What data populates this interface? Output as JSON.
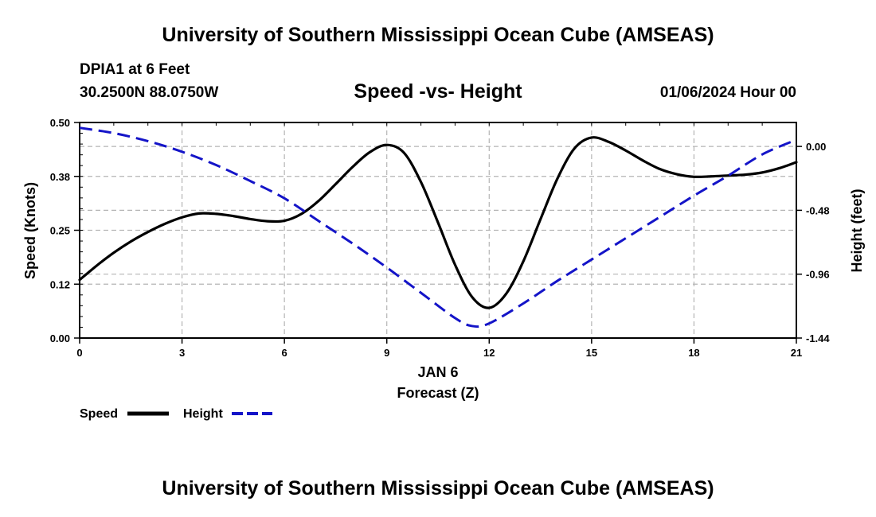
{
  "header": {
    "title": "University of Southern Mississippi Ocean Cube (AMSEAS)",
    "station": "DPIA1 at 6 Feet",
    "coords": "30.2500N  88.0750W",
    "datetime": "01/06/2024 Hour 00"
  },
  "footer": {
    "title": "University of Southern Mississippi Ocean Cube (AMSEAS)"
  },
  "colors": {
    "speed": "#000000",
    "height": "#1414c8",
    "grid": "#b4b4b4"
  },
  "chart_data": {
    "type": "line",
    "title": "Speed -vs- Height",
    "xlabel": "Forecast (Z)",
    "xlabel_date": "JAN 6",
    "ylabel": "Speed (Knots)",
    "y2label": "Height (feet)",
    "xlim": [
      0,
      21
    ],
    "ylim": [
      0,
      0.5
    ],
    "y2lim": [
      -1.44,
      0.18
    ],
    "x_ticks": [
      0,
      3,
      6,
      9,
      12,
      15,
      18,
      21
    ],
    "x_tick_labels": [
      "0",
      "3",
      "6",
      "9",
      "12",
      "15",
      "18",
      "21"
    ],
    "y_ticks": [
      0,
      0.125,
      0.25,
      0.375,
      0.5
    ],
    "y_tick_labels": [
      "0.00",
      "0.12",
      "0.25",
      "0.38",
      "0.50"
    ],
    "y2_ticks": [
      0.0,
      -0.48,
      -0.96,
      -1.44
    ],
    "y2_tick_labels": [
      "0.00",
      "-0.48",
      "-0.96",
      "-1.44"
    ],
    "legend": {
      "placement": "bottom-left"
    },
    "series": [
      {
        "name": "Speed",
        "axis": "left",
        "style": "solid",
        "x": [
          0,
          0.5,
          1,
          1.5,
          2,
          2.5,
          3,
          3.5,
          4,
          4.5,
          5,
          5.5,
          6,
          6.5,
          7,
          7.5,
          8,
          8.5,
          9,
          9.5,
          10,
          10.5,
          11,
          11.5,
          12,
          12.5,
          13,
          13.5,
          14,
          14.5,
          15,
          15.5,
          16,
          16.5,
          17,
          17.5,
          18,
          18.5,
          19,
          19.5,
          20,
          20.5,
          21
        ],
        "values": [
          0.135,
          0.168,
          0.198,
          0.224,
          0.246,
          0.265,
          0.28,
          0.289,
          0.288,
          0.283,
          0.276,
          0.271,
          0.272,
          0.288,
          0.318,
          0.357,
          0.397,
          0.431,
          0.448,
          0.43,
          0.362,
          0.268,
          0.17,
          0.095,
          0.07,
          0.103,
          0.178,
          0.275,
          0.37,
          0.44,
          0.465,
          0.455,
          0.435,
          0.412,
          0.392,
          0.38,
          0.374,
          0.375,
          0.377,
          0.379,
          0.384,
          0.394,
          0.408
        ]
      },
      {
        "name": "Height",
        "axis": "right",
        "style": "dashed",
        "x": [
          0,
          1,
          2,
          3,
          4,
          5,
          6,
          7,
          8,
          9,
          10,
          11,
          11.5,
          12,
          13,
          14,
          15,
          16,
          17,
          18,
          19,
          20,
          21
        ],
        "values": [
          0.14,
          0.1,
          0.04,
          -0.04,
          -0.14,
          -0.26,
          -0.39,
          -0.56,
          -0.73,
          -0.91,
          -1.1,
          -1.29,
          -1.35,
          -1.33,
          -1.18,
          -1.01,
          -0.85,
          -0.69,
          -0.53,
          -0.37,
          -0.22,
          -0.06,
          0.05
        ]
      }
    ]
  }
}
